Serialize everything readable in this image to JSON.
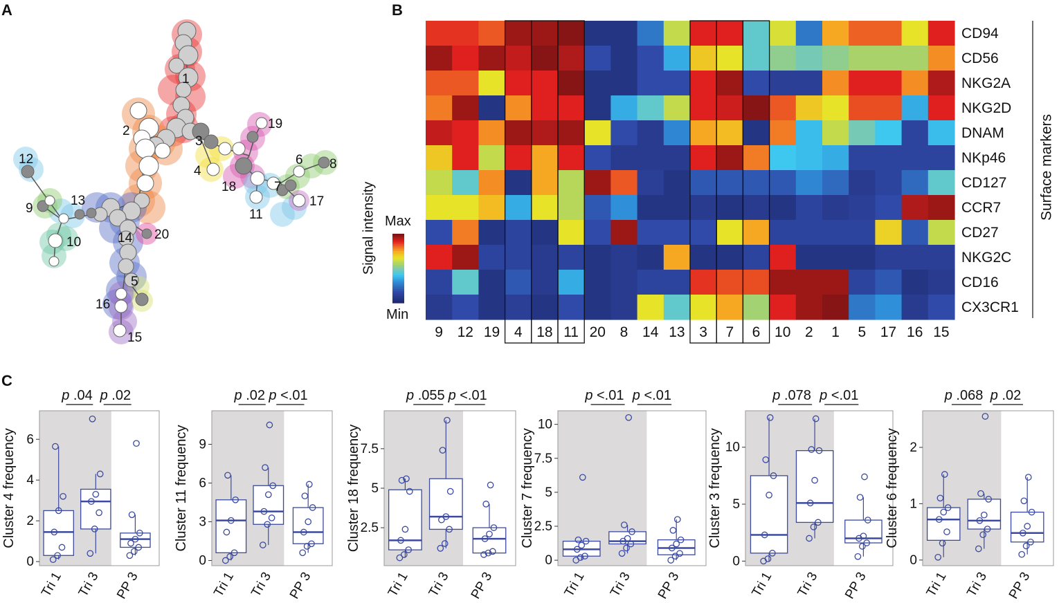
{
  "panels": {
    "a": "A",
    "b": "B",
    "c": "C"
  },
  "tree": {
    "labeled_nodes": [
      "1",
      "2",
      "3",
      "4",
      "5",
      "6",
      "7",
      "8",
      "9",
      "10",
      "11",
      "12",
      "13",
      "14",
      "15",
      "16",
      "17",
      "18",
      "19",
      "20"
    ]
  },
  "heatmap": {
    "legend_title": "Signal intensity",
    "legend_max": "Max",
    "legend_min": "Min",
    "side_label": "Surface markers",
    "highlighted_groups": [
      [
        "4",
        "18",
        "11"
      ],
      [
        "3",
        "7"
      ],
      [
        "6"
      ]
    ]
  },
  "chart_data": [
    {
      "type": "heatmap",
      "columns": [
        "9",
        "12",
        "19",
        "4",
        "18",
        "11",
        "20",
        "8",
        "14",
        "13",
        "3",
        "7",
        "6",
        "10",
        "2",
        "1",
        "5",
        "17",
        "16",
        "15"
      ],
      "rows": [
        "CD94",
        "CD56",
        "NKG2A",
        "NKG2D",
        "DNAM",
        "NKp46",
        "CD127",
        "CCR7",
        "CD27",
        "NKG2C",
        "CD16",
        "CX3CR1"
      ],
      "scale": "0 = Min, 1 = Max",
      "values": [
        [
          0.88,
          0.88,
          0.84,
          0.97,
          0.97,
          0.99,
          0.05,
          0.05,
          0.25,
          0.6,
          0.9,
          0.9,
          0.45,
          0.63,
          0.25,
          0.75,
          0.83,
          0.83,
          0.65,
          0.9
        ],
        [
          0.97,
          0.9,
          0.97,
          0.93,
          0.99,
          0.95,
          0.15,
          0.05,
          0.15,
          0.35,
          0.7,
          0.65,
          0.45,
          0.52,
          0.48,
          0.52,
          0.56,
          0.56,
          0.56,
          0.78
        ],
        [
          0.84,
          0.84,
          0.65,
          0.9,
          0.9,
          0.99,
          0.05,
          0.05,
          0.15,
          0.15,
          0.9,
          0.97,
          0.15,
          0.1,
          0.1,
          0.78,
          0.9,
          0.9,
          0.78,
          0.95
        ],
        [
          0.8,
          0.97,
          0.05,
          0.78,
          0.9,
          0.9,
          0.05,
          0.35,
          0.45,
          0.6,
          0.9,
          0.92,
          0.99,
          0.84,
          0.7,
          0.65,
          0.85,
          0.85,
          0.35,
          0.9
        ],
        [
          0.93,
          0.9,
          0.78,
          0.97,
          0.95,
          0.97,
          0.65,
          0.15,
          0.08,
          0.28,
          0.75,
          0.72,
          0.05,
          0.8,
          0.38,
          0.6,
          0.48,
          0.4,
          0.12,
          0.38
        ],
        [
          0.7,
          0.9,
          0.6,
          0.9,
          0.75,
          0.9,
          0.15,
          0.08,
          0.08,
          0.08,
          0.9,
          0.97,
          0.8,
          0.4,
          0.38,
          0.35,
          0.12,
          0.12,
          0.12,
          0.12
        ],
        [
          0.6,
          0.45,
          0.78,
          0.05,
          0.75,
          0.58,
          0.97,
          0.84,
          0.1,
          0.05,
          0.18,
          0.18,
          0.18,
          0.18,
          0.28,
          0.22,
          0.08,
          0.12,
          0.22,
          0.45
        ],
        [
          0.65,
          0.65,
          0.72,
          0.35,
          0.65,
          0.58,
          0.18,
          0.3,
          0.05,
          0.05,
          0.08,
          0.05,
          0.08,
          0.05,
          0.12,
          0.08,
          0.1,
          0.15,
          0.95,
          0.97
        ],
        [
          0.15,
          0.8,
          0.05,
          0.12,
          0.05,
          0.65,
          0.15,
          0.97,
          0.15,
          0.15,
          0.15,
          0.65,
          0.75,
          0.12,
          0.12,
          0.12,
          0.12,
          0.68,
          0.18,
          0.6
        ],
        [
          0.9,
          0.97,
          0.12,
          0.12,
          0.08,
          0.12,
          0.05,
          0.08,
          0.05,
          0.75,
          0.05,
          0.05,
          0.12,
          0.9,
          0.05,
          0.05,
          0.05,
          0.1,
          0.1,
          0.1
        ],
        [
          0.12,
          0.45,
          0.05,
          0.18,
          0.08,
          0.35,
          0.05,
          0.08,
          0.12,
          0.12,
          0.88,
          0.85,
          0.85,
          0.97,
          0.97,
          0.97,
          0.12,
          0.18,
          0.05,
          0.08
        ],
        [
          0.08,
          0.15,
          0.05,
          0.1,
          0.05,
          0.15,
          0.05,
          0.08,
          0.65,
          0.45,
          0.65,
          0.75,
          0.55,
          0.9,
          0.97,
          0.99,
          0.25,
          0.3,
          0.08,
          0.15
        ]
      ]
    },
    {
      "type": "box",
      "ylabel": "Cluster 4 frequency",
      "categories": [
        "Tri 1",
        "Tri 3",
        "PP 3"
      ],
      "ylim": [
        -0.2,
        7.4
      ],
      "yticks": [
        "0",
        "2",
        "4",
        "6"
      ],
      "ytick_values": [
        0,
        2,
        4,
        6
      ],
      "p_values": [
        ".04",
        ".02"
      ],
      "boxes": [
        {
          "whislo": 0.1,
          "q1": 0.3,
          "med": 1.45,
          "q3": 2.5,
          "whishi": 5.65,
          "points": [
            0.1,
            0.3,
            0.7,
            1.45,
            2.5,
            3.2,
            5.65
          ]
        },
        {
          "whislo": 0.4,
          "q1": 1.6,
          "med": 2.95,
          "q3": 3.55,
          "whishi": 4.3,
          "points": [
            0.4,
            1.6,
            2.4,
            2.95,
            3.3,
            4.3,
            7.0
          ]
        },
        {
          "whislo": 0.3,
          "q1": 0.7,
          "med": 1.1,
          "q3": 1.4,
          "whishi": 2.3,
          "points": [
            0.3,
            0.5,
            0.7,
            0.9,
            1.1,
            1.4,
            2.3,
            5.8
          ]
        }
      ]
    },
    {
      "type": "box",
      "ylabel": "Cluster 11 frequency",
      "categories": [
        "Tri 1",
        "Tri 3",
        "PP 3"
      ],
      "ylim": [
        -0.4,
        11.6
      ],
      "yticks": [
        "0",
        "3",
        "6",
        "9"
      ],
      "ytick_values": [
        0,
        3,
        6,
        9
      ],
      "p_values": [
        ".02",
        "<.01"
      ],
      "boxes": [
        {
          "whislo": 0.0,
          "q1": 0.6,
          "med": 3.1,
          "q3": 4.7,
          "whishi": 6.6,
          "points": [
            0.0,
            0.3,
            0.6,
            2.2,
            3.1,
            4.7,
            6.6
          ]
        },
        {
          "whislo": 1.2,
          "q1": 2.8,
          "med": 3.8,
          "q3": 5.8,
          "whishi": 7.2,
          "points": [
            1.2,
            2.8,
            3.3,
            3.8,
            5.1,
            5.8,
            7.2,
            10.5
          ]
        },
        {
          "whislo": 0.6,
          "q1": 1.3,
          "med": 2.2,
          "q3": 4.1,
          "whishi": 5.9,
          "points": [
            0.6,
            1.1,
            1.3,
            2.2,
            3.0,
            4.1,
            5.0,
            5.9
          ]
        }
      ]
    },
    {
      "type": "box",
      "ylabel": "Cluster 18 frequency",
      "categories": [
        "Tri 1",
        "Tri 3",
        "PP 3"
      ],
      "ylim": [
        0.1,
        9.9
      ],
      "yticks": [
        "2.5",
        "5",
        "7.5"
      ],
      "ytick_values": [
        2.5,
        5,
        7.5
      ],
      "p_values": [
        ".055",
        "<.01"
      ],
      "boxes": [
        {
          "whislo": 0.6,
          "q1": 1.1,
          "med": 1.7,
          "q3": 4.9,
          "whishi": 5.6,
          "points": [
            0.6,
            0.8,
            1.1,
            1.7,
            2.4,
            4.8,
            5.5,
            5.6
          ]
        },
        {
          "whislo": 1.2,
          "q1": 2.4,
          "med": 3.2,
          "q3": 5.6,
          "whishi": 9.3,
          "points": [
            1.2,
            1.5,
            2.4,
            3.0,
            3.2,
            4.8,
            7.4,
            9.3
          ]
        },
        {
          "whislo": 0.8,
          "q1": 0.9,
          "med": 1.8,
          "q3": 2.5,
          "whishi": 4.0,
          "points": [
            0.8,
            0.9,
            1.0,
            1.8,
            2.1,
            2.5,
            4.0,
            5.2
          ]
        }
      ]
    },
    {
      "type": "box",
      "ylabel": "Cluster 7 frequency",
      "categories": [
        "Tri 1",
        "Tri 3",
        "PP 3"
      ],
      "ylim": [
        -0.4,
        11.0
      ],
      "yticks": [
        "0",
        "2.5",
        "5",
        "7.5",
        "10"
      ],
      "ytick_values": [
        0,
        2.5,
        5,
        7.5,
        10
      ],
      "p_values": [
        "<.01",
        "<.01"
      ],
      "boxes": [
        {
          "whislo": 0.0,
          "q1": 0.3,
          "med": 0.8,
          "q3": 1.4,
          "whishi": 1.5,
          "points": [
            0.0,
            0.2,
            0.3,
            0.8,
            1.1,
            1.4,
            1.5,
            6.1
          ]
        },
        {
          "whislo": 0.5,
          "q1": 1.2,
          "med": 1.4,
          "q3": 2.1,
          "whishi": 2.6,
          "points": [
            0.5,
            0.9,
            1.2,
            1.4,
            1.6,
            2.1,
            2.6,
            10.5
          ]
        },
        {
          "whislo": 0.0,
          "q1": 0.4,
          "med": 0.9,
          "q3": 1.5,
          "whishi": 3.0,
          "points": [
            0.0,
            0.3,
            0.5,
            0.9,
            1.2,
            1.5,
            2.2,
            3.0
          ]
        }
      ]
    },
    {
      "type": "box",
      "ylabel": "Cluster 3 frequency",
      "categories": [
        "Tri 1",
        "Tri 3",
        "PP 3"
      ],
      "ylim": [
        -0.4,
        13.2
      ],
      "yticks": [
        "0",
        "5",
        "10"
      ],
      "ytick_values": [
        0,
        5,
        10
      ],
      "p_values": [
        ".078",
        "<.01"
      ],
      "boxes": [
        {
          "whislo": 0.0,
          "q1": 0.7,
          "med": 2.3,
          "q3": 7.5,
          "whishi": 12.6,
          "points": [
            0.0,
            0.2,
            0.7,
            2.3,
            5.8,
            7.5,
            8.9,
            12.6
          ]
        },
        {
          "whislo": 2.0,
          "q1": 3.4,
          "med": 5.1,
          "q3": 9.7,
          "whishi": 12.5,
          "points": [
            2.0,
            3.0,
            3.4,
            5.1,
            7.1,
            9.7,
            9.8,
            12.5
          ]
        },
        {
          "whislo": 0.4,
          "q1": 1.6,
          "med": 2.0,
          "q3": 3.6,
          "whishi": 5.6,
          "points": [
            0.4,
            1.3,
            1.6,
            2.0,
            2.2,
            3.6,
            5.6,
            7.4
          ]
        }
      ]
    },
    {
      "type": "box",
      "ylabel": "Cluster 6 frequency",
      "categories": [
        "Tri 1",
        "Tri 3",
        "PP 3"
      ],
      "ylim": [
        -0.1,
        2.65
      ],
      "yticks": [
        "0",
        "1",
        "2"
      ],
      "ytick_values": [
        0,
        1,
        2
      ],
      "p_values": [
        ".068",
        ".02"
      ],
      "boxes": [
        {
          "whislo": 0.05,
          "q1": 0.35,
          "med": 0.72,
          "q3": 0.93,
          "whishi": 1.52,
          "points": [
            0.05,
            0.3,
            0.5,
            0.72,
            0.85,
            0.93,
            1.1,
            1.52
          ]
        },
        {
          "whislo": 0.2,
          "q1": 0.55,
          "med": 0.7,
          "q3": 1.08,
          "whishi": 1.18,
          "points": [
            0.2,
            0.45,
            0.55,
            0.7,
            0.8,
            1.08,
            1.18,
            2.55
          ]
        },
        {
          "whislo": 0.1,
          "q1": 0.32,
          "med": 0.48,
          "q3": 0.85,
          "whishi": 1.47,
          "points": [
            0.1,
            0.25,
            0.32,
            0.48,
            0.6,
            0.85,
            1.05,
            1.47
          ]
        }
      ]
    }
  ]
}
